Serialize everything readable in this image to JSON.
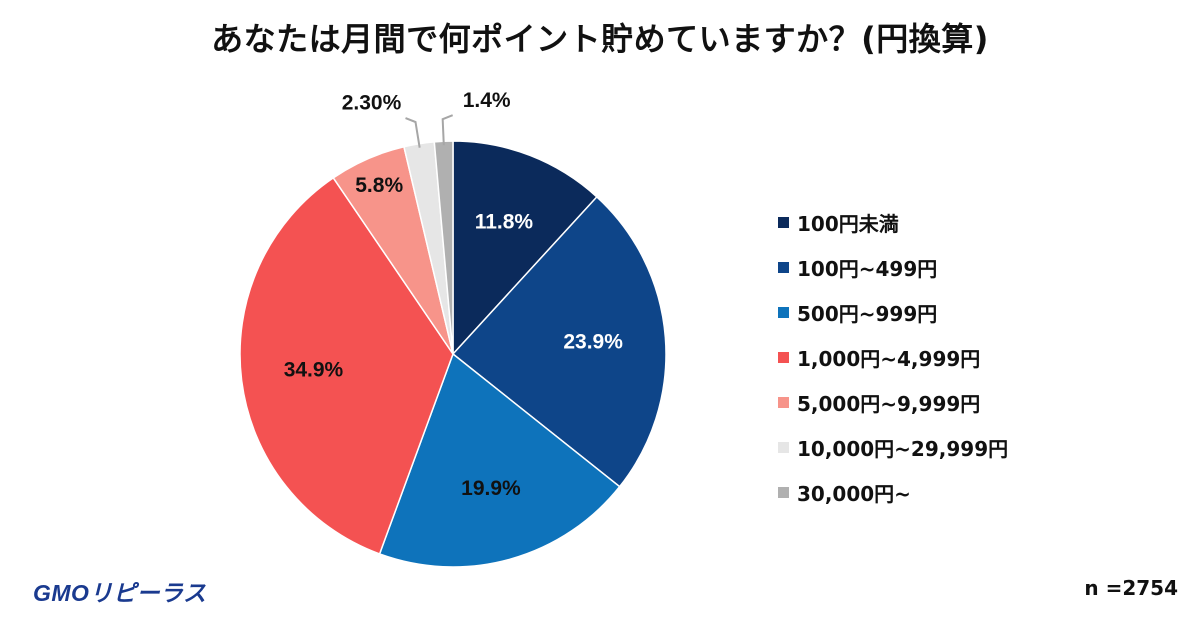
{
  "chart_data": {
    "type": "pie",
    "title": "あなたは月間で何ポイント貯めていますか？(円換算)",
    "start": "top, clockwise",
    "slices": [
      {
        "label": "100円未満",
        "value": 11.8,
        "value_label": "11.8%",
        "color": "#0b2a5b",
        "label_color": "#ffffff"
      },
      {
        "label": "100円~499円",
        "value": 23.9,
        "value_label": "23.9%",
        "color": "#0e4589",
        "label_color": "#ffffff"
      },
      {
        "label": "500円~999円",
        "value": 19.9,
        "value_label": "19.9%",
        "color": "#0e73bb",
        "label_color": "#111111"
      },
      {
        "label": "1,000円~4,999円",
        "value": 34.9,
        "value_label": "34.9%",
        "color": "#f45252",
        "label_color": "#111111"
      },
      {
        "label": "5,000円~9,999円",
        "value": 5.8,
        "value_label": "5.8%",
        "color": "#f7948a",
        "label_color": "#111111"
      },
      {
        "label": "10,000円~29,999円",
        "value": 2.3,
        "value_label": "2.30%",
        "color": "#e6e6e6",
        "label_color": "#111111"
      },
      {
        "label": "30,000円~",
        "value": 1.4,
        "value_label": "1.4%",
        "color": "#b0b0b0",
        "label_color": "#111111"
      }
    ],
    "legend_position": "right"
  },
  "footer": {
    "logo_text": "GMOリピーラス",
    "sample_size": "n =2754"
  }
}
